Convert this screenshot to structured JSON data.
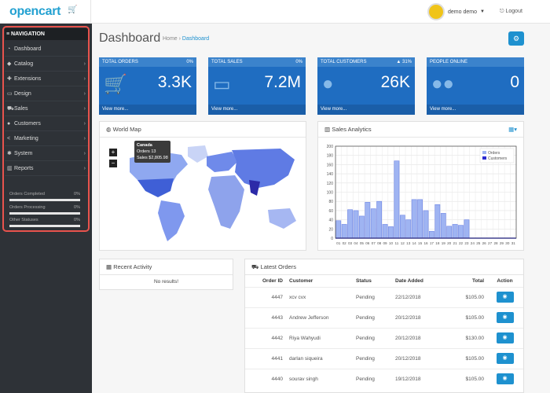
{
  "header": {
    "logo": "opencart",
    "user_name": "demo demo",
    "logout": "Logout"
  },
  "sidebar": {
    "title": "NAVIGATION",
    "items": [
      {
        "label": "Dashboard",
        "icon": "dashboard-icon"
      },
      {
        "label": "Catalog",
        "icon": "tag-icon"
      },
      {
        "label": "Extensions",
        "icon": "puzzle-icon"
      },
      {
        "label": "Design",
        "icon": "desktop-icon"
      },
      {
        "label": "Sales",
        "icon": "cart-icon"
      },
      {
        "label": "Customers",
        "icon": "user-icon"
      },
      {
        "label": "Marketing",
        "icon": "share-icon"
      },
      {
        "label": "System",
        "icon": "gear-icon"
      },
      {
        "label": "Reports",
        "icon": "bar-chart-icon"
      }
    ],
    "progress": [
      {
        "label": "Orders Completed",
        "pct": "0%"
      },
      {
        "label": "Orders Processing",
        "pct": "0%"
      },
      {
        "label": "Other Statuses",
        "pct": "0%"
      }
    ]
  },
  "page": {
    "title": "Dashboard",
    "breadcrumb": [
      "Home",
      "Dashboard"
    ]
  },
  "tiles": [
    {
      "title": "TOTAL ORDERS",
      "badge": "0%",
      "value": "3.3K",
      "footer": "View more...",
      "icon": "cart-icon"
    },
    {
      "title": "TOTAL SALES",
      "badge": "0%",
      "value": "7.2M",
      "footer": "View more...",
      "icon": "credit-card-icon"
    },
    {
      "title": "TOTAL CUSTOMERS",
      "badge": "▲ 31%",
      "value": "26K",
      "footer": "View more...",
      "icon": "user-icon"
    },
    {
      "title": "PEOPLE ONLINE",
      "badge": "",
      "value": "0",
      "footer": "View more...",
      "icon": "users-icon"
    }
  ],
  "world_map": {
    "title": "World Map",
    "tooltip": {
      "country": "Canada",
      "orders": "Orders 13",
      "sales": "Sales $2,805.98"
    },
    "zoom_in": "+",
    "zoom_out": "−"
  },
  "colors": {
    "accent": "#1e91cf",
    "tile": "#1f6dc1",
    "sidebar": "#2e3237",
    "bar": "#9fb4f2"
  },
  "chart_data": {
    "type": "bar",
    "title": "Sales Analytics",
    "categories": [
      "01",
      "02",
      "03",
      "04",
      "05",
      "06",
      "07",
      "08",
      "09",
      "10",
      "11",
      "12",
      "13",
      "14",
      "15",
      "16",
      "17",
      "18",
      "19",
      "20",
      "21",
      "22",
      "23",
      "24",
      "25",
      "26",
      "27",
      "28",
      "29",
      "30",
      "31"
    ],
    "series": [
      {
        "name": "Orders",
        "values": [
          38,
          30,
          62,
          60,
          48,
          78,
          64,
          80,
          30,
          25,
          168,
          50,
          40,
          84,
          84,
          60,
          15,
          73,
          54,
          26,
          30,
          28,
          40,
          0,
          0,
          0,
          0,
          0,
          0,
          0,
          0
        ]
      },
      {
        "name": "Customers",
        "values": [
          0,
          0,
          0,
          0,
          0,
          0,
          0,
          0,
          0,
          0,
          0,
          0,
          0,
          0,
          0,
          0,
          0,
          0,
          0,
          0,
          0,
          0,
          0,
          0,
          0,
          0,
          0,
          0,
          0,
          0,
          0
        ]
      }
    ],
    "ylim": [
      0,
      200
    ],
    "yticks": [
      "0",
      "20",
      "40",
      "60",
      "80",
      "100",
      "120",
      "140",
      "160",
      "180",
      "200"
    ],
    "legend": "top-right"
  },
  "activity": {
    "title": "Recent Activity",
    "empty": "No results!"
  },
  "orders": {
    "title": "Latest Orders",
    "columns": [
      "Order ID",
      "Customer",
      "Status",
      "Date Added",
      "Total",
      "Action"
    ],
    "rows": [
      {
        "id": "4447",
        "customer": "xcv cvx",
        "status": "Pending",
        "date": "22/12/2018",
        "total": "$105.00"
      },
      {
        "id": "4443",
        "customer": "Andrew Jefferson",
        "status": "Pending",
        "date": "20/12/2018",
        "total": "$105.00"
      },
      {
        "id": "4442",
        "customer": "Riya Wahyudi",
        "status": "Pending",
        "date": "20/12/2018",
        "total": "$130.00"
      },
      {
        "id": "4441",
        "customer": "darlan siqueira",
        "status": "Pending",
        "date": "20/12/2018",
        "total": "$105.00"
      },
      {
        "id": "4440",
        "customer": "sourav singh",
        "status": "Pending",
        "date": "19/12/2018",
        "total": "$105.00"
      }
    ]
  }
}
